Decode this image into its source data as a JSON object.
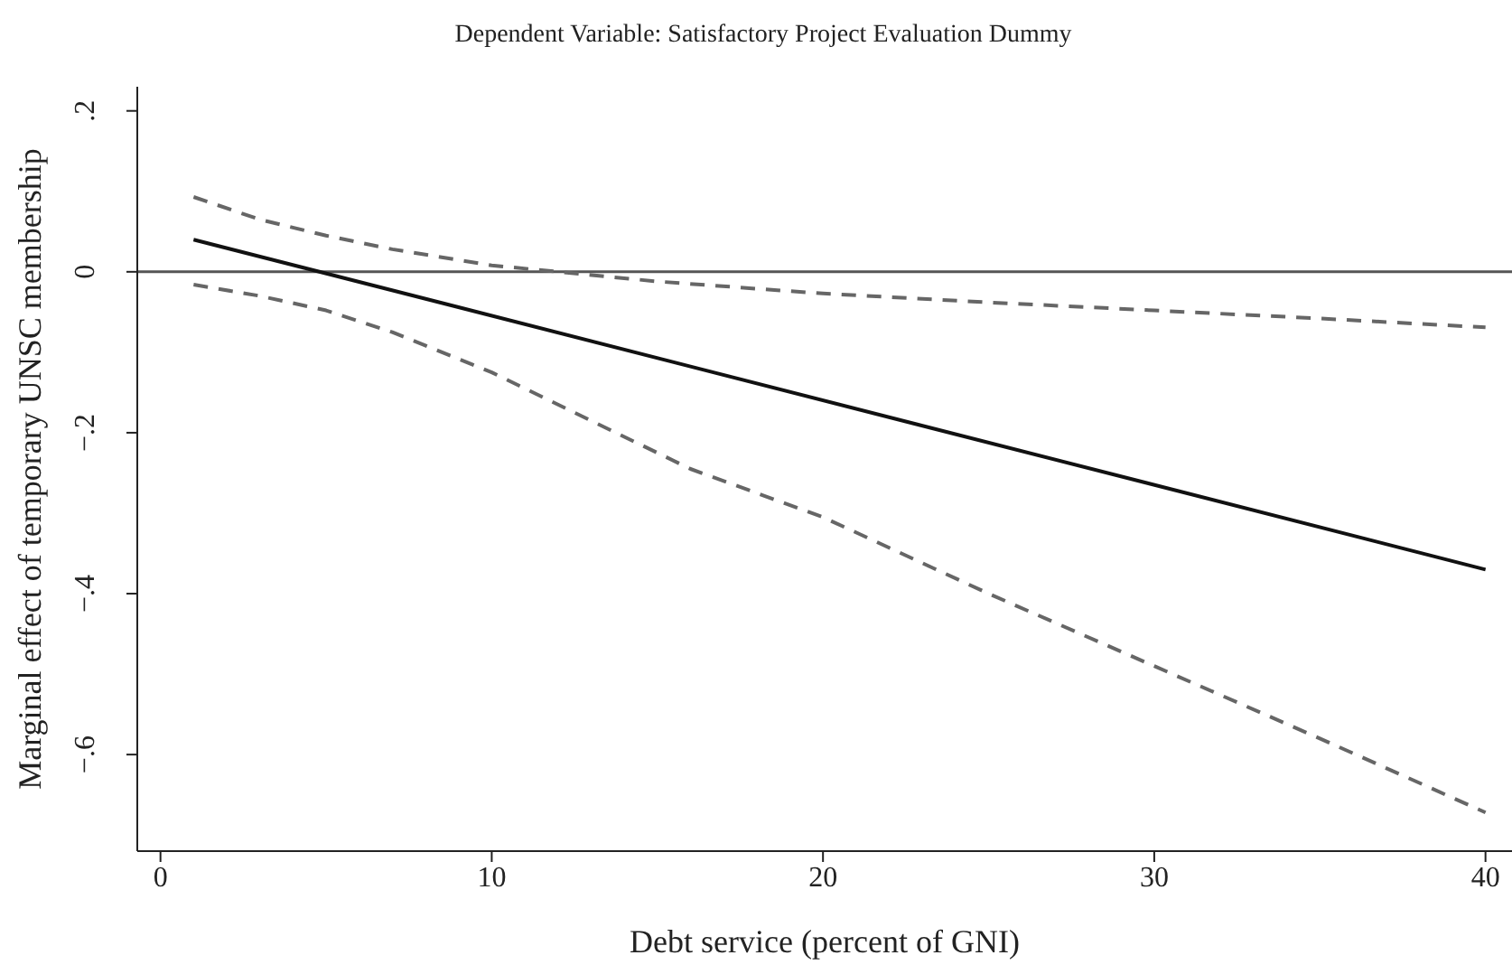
{
  "chart_data": {
    "type": "line",
    "title": "Dependent Variable: Satisfactory Project Evaluation Dummy",
    "xlabel": "Debt service (percent of GNI)",
    "ylabel": "Marginal effect of temporary UNSC membership",
    "xlim": [
      -0.7,
      40.8
    ],
    "ylim": [
      -0.72,
      0.23
    ],
    "xticks": [
      0,
      10,
      20,
      30,
      40
    ],
    "yticks": [
      {
        "value": 0.2,
        "label": ".2"
      },
      {
        "value": 0,
        "label": "0"
      },
      {
        "value": -0.2,
        "label": "−.2"
      },
      {
        "value": -0.4,
        "label": "−.4"
      },
      {
        "value": -0.6,
        "label": "−.6"
      }
    ],
    "grid": false,
    "marker": "none",
    "ref_lines": [
      {
        "axis": "y",
        "value": 0,
        "color": "#555555",
        "line_style": "solid"
      }
    ],
    "series": [
      {
        "color": "#111111",
        "line_style": "solid",
        "x": [
          1,
          40
        ],
        "values": [
          0.04,
          -0.37
        ]
      },
      {
        "color": "#666666",
        "line_style": "dashed",
        "x": [
          1,
          3,
          5,
          7,
          10,
          12,
          15,
          20,
          25,
          30,
          35,
          40
        ],
        "values": [
          0.093,
          0.065,
          0.045,
          0.028,
          0.008,
          0,
          -0.012,
          -0.027,
          -0.038,
          -0.048,
          -0.058,
          -0.069
        ]
      },
      {
        "color": "#666666",
        "line_style": "dashed",
        "x": [
          1,
          3,
          5,
          7,
          10,
          13,
          16,
          20,
          25,
          30,
          35,
          40
        ],
        "values": [
          -0.016,
          -0.03,
          -0.048,
          -0.075,
          -0.125,
          -0.185,
          -0.245,
          -0.305,
          -0.4,
          -0.49,
          -0.58,
          -0.672
        ]
      }
    ]
  }
}
